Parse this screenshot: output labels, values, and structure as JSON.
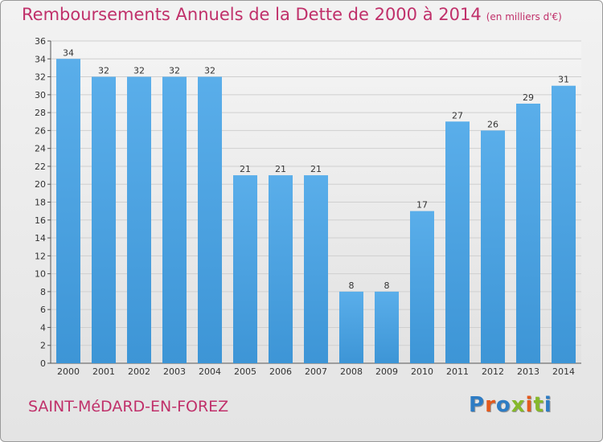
{
  "header": {
    "title": "Remboursements Annuels de la Dette de 2000 à 2014",
    "unit": "(en milliers d'€)"
  },
  "footer": {
    "commune": "SAINT-MéDARD-EN-FOREZ",
    "logo": "Proxiti"
  },
  "colors": {
    "bar": "#3d95d6",
    "title": "#c0306a",
    "logo": [
      "#2e7cc4",
      "#e35a1e",
      "#2e7cc4",
      "#86b82a",
      "#e35a1e",
      "#86b82a",
      "#2e7cc4"
    ]
  },
  "chart_data": {
    "type": "bar",
    "title": "Remboursements Annuels de la Dette de 2000 à 2014",
    "xlabel": "",
    "ylabel": "",
    "categories": [
      "2000",
      "2001",
      "2002",
      "2003",
      "2004",
      "2005",
      "2006",
      "2007",
      "2008",
      "2009",
      "2010",
      "2011",
      "2012",
      "2013",
      "2014"
    ],
    "values": [
      34,
      32,
      32,
      32,
      32,
      21,
      21,
      21,
      8,
      8,
      17,
      27,
      26,
      29,
      31
    ],
    "ylim": [
      0,
      36
    ],
    "ytick_step": 2,
    "grid": true,
    "legend": "none"
  }
}
